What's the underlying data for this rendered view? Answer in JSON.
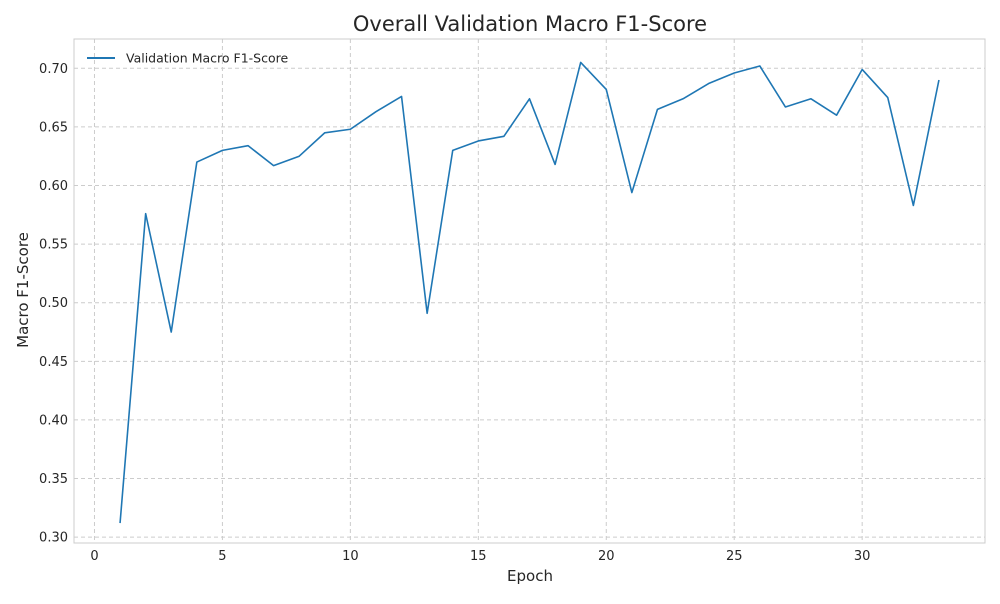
{
  "chart_data": {
    "type": "line",
    "title": "Overall Validation Macro F1-Score",
    "xlabel": "Epoch",
    "ylabel": "Macro F1-Score",
    "xlim": [
      -0.8,
      34.8
    ],
    "ylim": [
      0.295,
      0.725
    ],
    "xticks": [
      0,
      5,
      10,
      15,
      20,
      25,
      30
    ],
    "yticks": [
      0.3,
      0.35,
      0.4,
      0.45,
      0.5,
      0.55,
      0.6,
      0.65,
      0.7
    ],
    "grid": true,
    "legend_position": "top-left",
    "series": [
      {
        "name": "Validation Macro F1-Score",
        "color": "#1f77b4",
        "x": [
          1,
          2,
          3,
          4,
          5,
          6,
          7,
          8,
          9,
          10,
          11,
          12,
          13,
          14,
          15,
          16,
          17,
          18,
          19,
          20,
          21,
          22,
          23,
          24,
          25,
          26,
          27,
          28,
          29,
          30,
          31,
          32,
          33
        ],
        "y": [
          0.312,
          0.576,
          0.475,
          0.62,
          0.63,
          0.634,
          0.617,
          0.625,
          0.645,
          0.648,
          0.663,
          0.676,
          0.491,
          0.63,
          0.638,
          0.642,
          0.674,
          0.618,
          0.705,
          0.682,
          0.594,
          0.665,
          0.674,
          0.687,
          0.696,
          0.702,
          0.667,
          0.674,
          0.66,
          0.699,
          0.675,
          0.583,
          0.69
        ]
      }
    ]
  }
}
